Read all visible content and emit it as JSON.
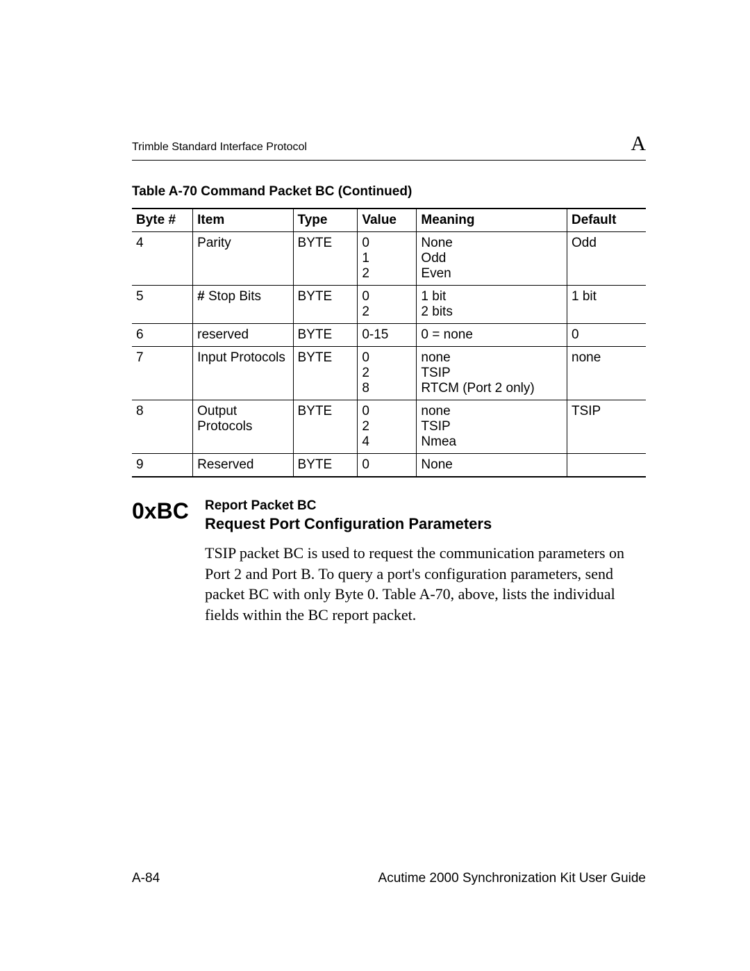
{
  "header": {
    "left": "Trimble Standard Interface Protocol",
    "right": "A"
  },
  "table": {
    "caption": "Table A-70    Command Packet BC (Continued)",
    "columns": [
      "Byte #",
      "Item",
      "Type",
      "Value",
      "Meaning",
      "Default"
    ],
    "rows": [
      {
        "byte": "4",
        "item": "Parity",
        "type": "BYTE",
        "value": "0\n1\n2",
        "meaning": "None\nOdd\nEven",
        "default": "Odd"
      },
      {
        "byte": "5",
        "item": "# Stop Bits",
        "type": "BYTE",
        "value": "0\n2",
        "meaning": "1 bit\n2 bits",
        "default": "1 bit"
      },
      {
        "byte": "6",
        "item": "reserved",
        "type": "BYTE",
        "value": "0-15",
        "meaning": "0 = none",
        "default": "0"
      },
      {
        "byte": "7",
        "item": "Input Protocols",
        "type": "BYTE",
        "value": "0\n2\n8",
        "meaning": "none\nTSIP\nRTCM (Port 2 only)",
        "default": "none"
      },
      {
        "byte": "8",
        "item": "Output Protocols",
        "type": "BYTE",
        "value": "0\n2\n4",
        "meaning": "none\nTSIP\nNmea",
        "default": "TSIP"
      },
      {
        "byte": "9",
        "item": "Reserved",
        "type": "BYTE",
        "value": "0",
        "meaning": "None",
        "default": ""
      }
    ]
  },
  "section": {
    "code": "0xBC",
    "label": "Report Packet BC",
    "title": "Request Port Configuration Parameters",
    "paragraph": "TSIP packet BC is used to request the communication parameters on Port 2 and Port B. To query a port's configuration parameters, send packet BC with only Byte 0. Table A-70, above, lists the individual fields within the BC report packet."
  },
  "footer": {
    "left": "A-84",
    "right": "Acutime 2000 Synchronization Kit User Guide"
  }
}
